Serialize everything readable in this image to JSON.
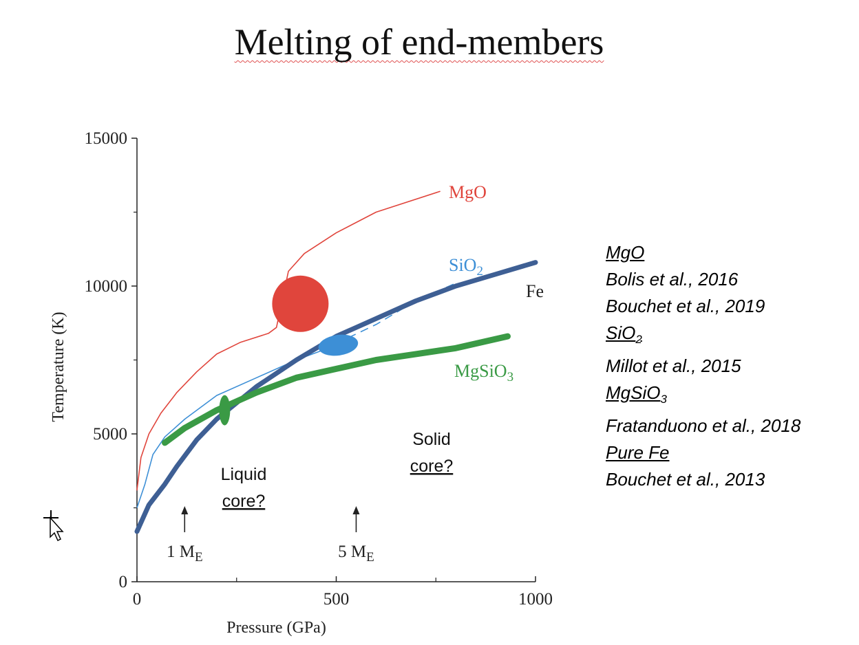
{
  "slide": {
    "title": "Melting of end-members"
  },
  "references": [
    {
      "text": "MgO",
      "heading": true
    },
    {
      "text": "Bolis et al., 2016",
      "heading": false
    },
    {
      "text": "Bouchet et al., 2019",
      "heading": false
    },
    {
      "text": "SiO",
      "sub": "2",
      "heading": true
    },
    {
      "text": "Millot et al., 2015",
      "heading": false
    },
    {
      "text": "MgSiO",
      "sub": "3",
      "heading": true
    },
    {
      "text": "Fratanduono et al., 2018",
      "heading": false
    },
    {
      "text": "Pure Fe",
      "heading": true
    },
    {
      "text": "Bouchet et al., 2013",
      "heading": false
    }
  ],
  "chart_data": {
    "type": "line",
    "xlabel": "Pressure (GPa)",
    "ylabel": "Temperature (K)",
    "xlim": [
      0,
      1000
    ],
    "ylim": [
      0,
      15000
    ],
    "xticks": [
      0,
      500,
      1000
    ],
    "yticks": [
      0,
      5000,
      10000,
      15000
    ],
    "series": [
      {
        "name": "MgO",
        "sub": "",
        "color": "#e0453c",
        "values": [
          [
            0,
            3100
          ],
          [
            10,
            4200
          ],
          [
            30,
            5000
          ],
          [
            60,
            5700
          ],
          [
            100,
            6400
          ],
          [
            150,
            7100
          ],
          [
            200,
            7700
          ],
          [
            260,
            8100
          ],
          [
            330,
            8400
          ],
          [
            350,
            8600
          ],
          [
            380,
            10500
          ],
          [
            420,
            11100
          ],
          [
            500,
            11800
          ],
          [
            600,
            12500
          ],
          [
            760,
            13200
          ]
        ]
      },
      {
        "name": "SiO",
        "sub": "2",
        "color": "#3d8fd6",
        "dashed_from": 530,
        "values": [
          [
            0,
            2500
          ],
          [
            20,
            3300
          ],
          [
            40,
            4300
          ],
          [
            70,
            4900
          ],
          [
            120,
            5500
          ],
          [
            200,
            6300
          ],
          [
            300,
            6900
          ],
          [
            400,
            7500
          ],
          [
            480,
            7900
          ],
          [
            530,
            8250
          ],
          [
            600,
            8700
          ],
          [
            700,
            9500
          ],
          [
            800,
            10100
          ]
        ]
      },
      {
        "name": "Fe",
        "sub": "",
        "color": "#3e5f94",
        "values": [
          [
            0,
            1700
          ],
          [
            30,
            2600
          ],
          [
            70,
            3300
          ],
          [
            100,
            3900
          ],
          [
            150,
            4800
          ],
          [
            200,
            5500
          ],
          [
            300,
            6600
          ],
          [
            400,
            7500
          ],
          [
            500,
            8300
          ],
          [
            600,
            8900
          ],
          [
            700,
            9500
          ],
          [
            800,
            10000
          ],
          [
            900,
            10400
          ],
          [
            1000,
            10800
          ]
        ]
      },
      {
        "name": "MgSiO",
        "sub": "3",
        "color": "#3a9a45",
        "values": [
          [
            70,
            4700
          ],
          [
            120,
            5200
          ],
          [
            200,
            5800
          ],
          [
            300,
            6400
          ],
          [
            400,
            6900
          ],
          [
            500,
            7200
          ],
          [
            600,
            7500
          ],
          [
            700,
            7700
          ],
          [
            800,
            7900
          ],
          [
            930,
            8300
          ]
        ]
      }
    ],
    "data_regions": [
      {
        "series": "MgO",
        "x": 410,
        "y": 9400,
        "shape": "circle"
      },
      {
        "series": "SiO2",
        "x": 505,
        "y": 8000,
        "shape": "ellipse"
      },
      {
        "series": "MgSiO3",
        "x": 220,
        "y": 5800,
        "shape": "ellipse"
      }
    ],
    "annotations": [
      {
        "text": "Liquid",
        "note": "core?"
      },
      {
        "text": "Solid",
        "note": "core?"
      }
    ],
    "markers": [
      {
        "label": "1 M",
        "sub": "E",
        "x": 130
      },
      {
        "label": "5 M",
        "sub": "E",
        "x": 550
      }
    ]
  }
}
